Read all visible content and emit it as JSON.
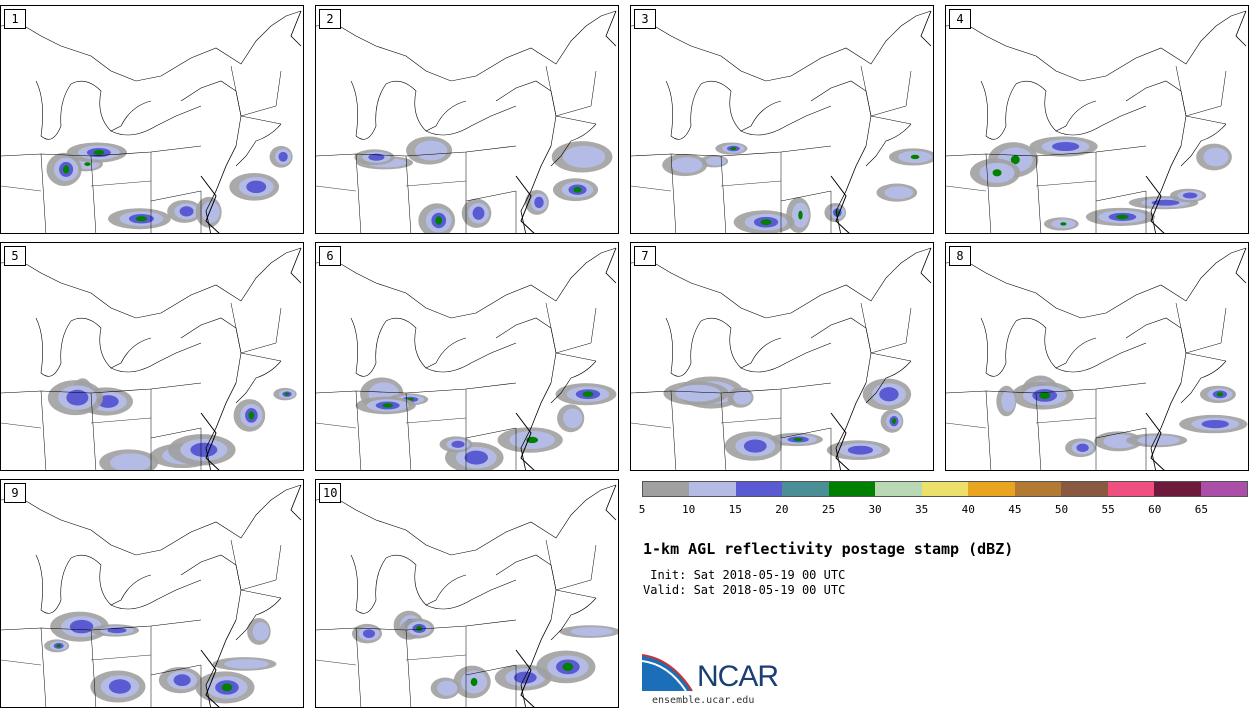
{
  "panels": [
    {
      "label": "1"
    },
    {
      "label": "2"
    },
    {
      "label": "3"
    },
    {
      "label": "4"
    },
    {
      "label": "5"
    },
    {
      "label": "6"
    },
    {
      "label": "7"
    },
    {
      "label": "8"
    },
    {
      "label": "9"
    },
    {
      "label": "10"
    }
  ],
  "colorbar": {
    "colors": [
      "#a0a0a0",
      "#b4bce6",
      "#5a5ad2",
      "#4a8f96",
      "#008000",
      "#b9d8b4",
      "#ede06a",
      "#e9a520",
      "#b27a32",
      "#8a5a40",
      "#ef5080",
      "#6e1a3c",
      "#ab4fa8"
    ],
    "tick_labels": [
      "5",
      "10",
      "15",
      "20",
      "25",
      "30",
      "35",
      "40",
      "45",
      "50",
      "55",
      "60",
      "65"
    ]
  },
  "title": "1-km AGL reflectivity postage stamp (dBZ)",
  "init": " Init: Sat 2018-05-19 00 UTC",
  "valid": "Valid: Sat 2018-05-19 00 UTC",
  "logo": {
    "text": "NCAR",
    "site": "ensemble.ucar.edu"
  }
}
